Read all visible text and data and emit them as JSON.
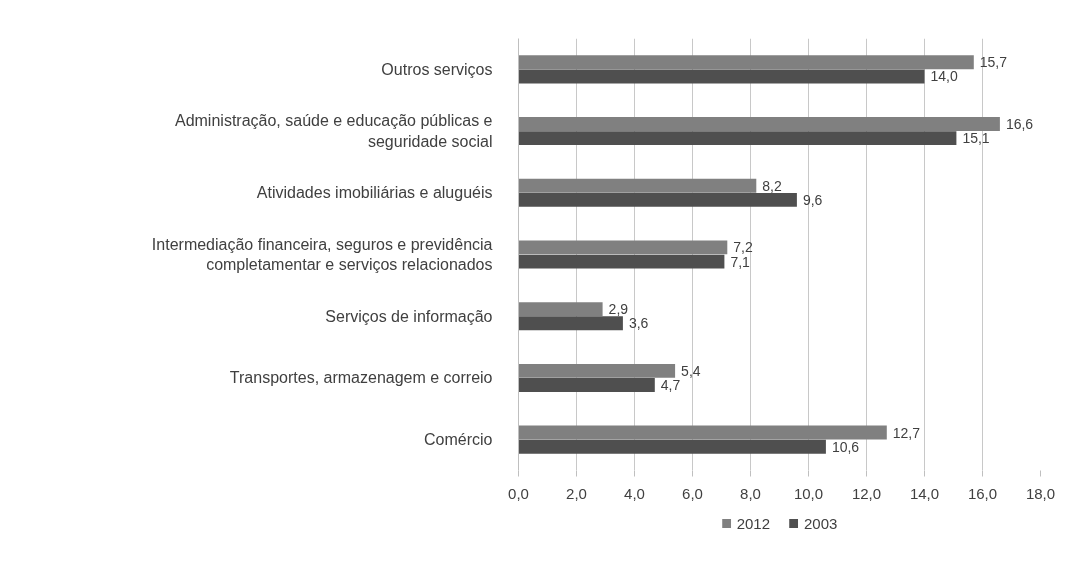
{
  "chart_data": {
    "type": "bar",
    "orientation": "horizontal",
    "categories": [
      "Outros serviços",
      "Administração, saúde e educação públicas e seguridade social",
      "Atividades imobiliárias e aluguéis",
      "Intermediação financeira, seguros e previdência completamentar e serviços relacionados",
      "Serviços de informação",
      "Transportes, armazenagem e correio",
      "Comércio"
    ],
    "series": [
      {
        "name": "2012",
        "color": "#808080",
        "values": [
          15.7,
          16.6,
          8.2,
          7.2,
          2.9,
          5.4,
          12.7
        ],
        "value_labels": [
          "15,7",
          "16,6",
          "8,2",
          "7,2",
          "2,9",
          "5,4",
          "12,7"
        ]
      },
      {
        "name": "2003",
        "color": "#4f4f4f",
        "values": [
          14.0,
          15.1,
          9.6,
          7.1,
          3.6,
          4.7,
          10.6
        ],
        "value_labels": [
          "14,0",
          "15,1",
          "9,6",
          "7,1",
          "3,6",
          "4,7",
          "10,6"
        ]
      }
    ],
    "xlim": [
      0,
      18
    ],
    "xticks": [
      {
        "value": 0,
        "label": "0,0"
      },
      {
        "value": 2,
        "label": "2,0"
      },
      {
        "value": 4,
        "label": "4,0"
      },
      {
        "value": 6,
        "label": "6,0"
      },
      {
        "value": 8,
        "label": "8,0"
      },
      {
        "value": 10,
        "label": "10,0"
      },
      {
        "value": 12,
        "label": "12,0"
      },
      {
        "value": 14,
        "label": "14,0"
      },
      {
        "value": 16,
        "label": "16,0"
      },
      {
        "value": 18,
        "label": "18,0"
      }
    ],
    "grid": "x",
    "legend": "bottom"
  }
}
